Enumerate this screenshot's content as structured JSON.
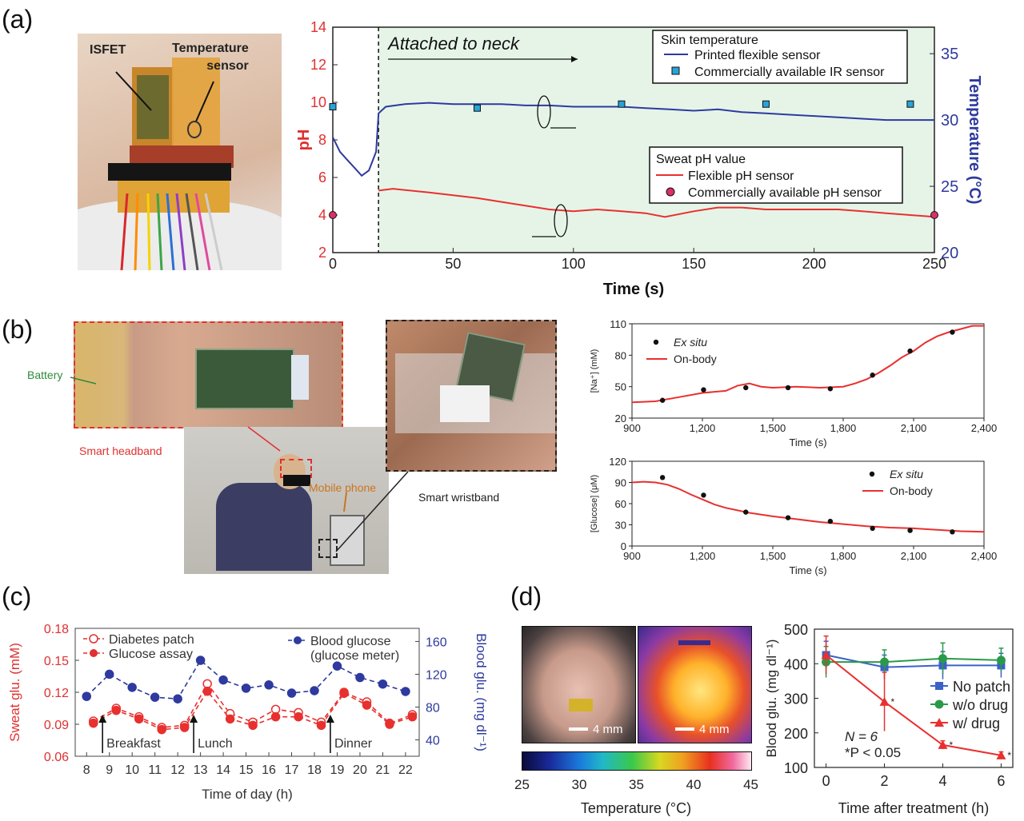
{
  "panels": {
    "a": {
      "label": "(a)",
      "photo_labels": {
        "isfet": "ISFET",
        "temp_sensor": "Temperature\nsensor"
      },
      "chart_data": {
        "type": "line",
        "xlabel": "Time (s)",
        "ylabel_left": "pH",
        "ylabel_right": "Temperature (°C)",
        "xlim": [
          0,
          250
        ],
        "ylim_left": [
          2,
          14
        ],
        "ylim_right": [
          20,
          37
        ],
        "xticks": [
          0,
          50,
          100,
          150,
          200,
          250
        ],
        "yticks_left": [
          2,
          4,
          6,
          8,
          10,
          12,
          14
        ],
        "yticks_right": [
          20,
          25,
          30,
          35
        ],
        "annotation": "Attached to neck",
        "attach_time": 19,
        "legend_temp_title": "Skin temperature",
        "legend_ph_title": "Sweat pH value",
        "series": [
          {
            "name": "Printed flexible sensor",
            "axis": "right",
            "color": "#2e3a9e",
            "x": [
              0,
              3,
              6,
              9,
              12,
              15,
              18,
              19,
              22,
              30,
              40,
              50,
              60,
              70,
              80,
              90,
              100,
              110,
              120,
              130,
              140,
              150,
              160,
              170,
              180,
              190,
              200,
              210,
              220,
              230,
              240,
              250
            ],
            "y": [
              28.7,
              27.6,
              27.0,
              26.4,
              25.8,
              26.2,
              27.6,
              30.5,
              31.0,
              31.2,
              31.3,
              31.2,
              31.2,
              31.2,
              31.1,
              31.1,
              31.0,
              31.0,
              31.0,
              30.9,
              30.8,
              30.7,
              30.8,
              30.6,
              30.5,
              30.4,
              30.3,
              30.2,
              30.1,
              30.0,
              30.0,
              30.0
            ]
          },
          {
            "name": "Commercially available IR sensor",
            "axis": "right",
            "color": "#29a3d8",
            "x": [
              0,
              60,
              120,
              180,
              240
            ],
            "y": [
              31.0,
              30.9,
              31.2,
              31.2,
              31.2
            ]
          },
          {
            "name": "Flexible pH sensor",
            "axis": "left",
            "color": "#e8302f",
            "x": [
              19,
              25,
              40,
              60,
              80,
              90,
              100,
              110,
              120,
              130,
              138,
              150,
              160,
              170,
              180,
              190,
              200,
              210,
              220,
              230,
              240,
              250
            ],
            "y": [
              5.3,
              5.4,
              5.2,
              4.9,
              4.5,
              4.3,
              4.2,
              4.3,
              4.2,
              4.1,
              3.9,
              4.2,
              4.4,
              4.4,
              4.3,
              4.3,
              4.3,
              4.3,
              4.2,
              4.1,
              4.0,
              3.9
            ]
          },
          {
            "name": "Commercially available pH sensor",
            "axis": "left",
            "color": "#d9306a",
            "x": [
              0,
              250
            ],
            "y": [
              4.0,
              4.0
            ]
          }
        ]
      }
    },
    "b": {
      "label": "(b)",
      "photo_labels": {
        "battery": "Battery",
        "headband": "Smart headband",
        "phone": "Mobile phone",
        "wristband": "Smart wristband"
      },
      "chart_data": [
        {
          "type": "line",
          "xlabel": "Time (s)",
          "ylabel": "[Na⁺] (mM)",
          "xlim": [
            900,
            2400
          ],
          "ylim": [
            20,
            110
          ],
          "xticks": [
            900,
            1200,
            1500,
            1800,
            2100,
            2400
          ],
          "xtick_labels": [
            "900",
            "1,200",
            "1,500",
            "1,800",
            "2,100",
            "2,400"
          ],
          "yticks": [
            20,
            50,
            80,
            110
          ],
          "series": [
            {
              "name": "Ex situ",
              "kind": "scatter",
              "color": "#111111",
              "x": [
                1030,
                1205,
                1385,
                1565,
                1745,
                1925,
                2085,
                2265
              ],
              "y": [
                37,
                47,
                49,
                49,
                48,
                61,
                84,
                102
              ]
            },
            {
              "name": "On-body",
              "kind": "line",
              "color": "#e8302f",
              "x": [
                900,
                1000,
                1100,
                1200,
                1300,
                1350,
                1400,
                1450,
                1500,
                1600,
                1700,
                1800,
                1850,
                1900,
                1950,
                2000,
                2050,
                2100,
                2150,
                2200,
                2250,
                2300,
                2350,
                2400
              ],
              "y": [
                35,
                36,
                40,
                44,
                46,
                51,
                53,
                50,
                49,
                50,
                49,
                50,
                53,
                57,
                63,
                70,
                78,
                84,
                92,
                98,
                102,
                105,
                108,
                108
              ]
            }
          ]
        },
        {
          "type": "line",
          "xlabel": "Time (s)",
          "ylabel": "[Glucose] (μM)",
          "xlim": [
            900,
            2400
          ],
          "ylim": [
            0,
            120
          ],
          "xticks": [
            900,
            1200,
            1500,
            1800,
            2100,
            2400
          ],
          "xtick_labels": [
            "900",
            "1,200",
            "1,500",
            "1,800",
            "2,100",
            "2,400"
          ],
          "yticks": [
            0,
            30,
            60,
            90,
            120
          ],
          "series": [
            {
              "name": "Ex situ",
              "kind": "scatter",
              "color": "#111111",
              "x": [
                1030,
                1205,
                1385,
                1565,
                1745,
                1925,
                2085,
                2265
              ],
              "y": [
                97,
                72,
                48,
                40,
                35,
                25,
                22,
                20
              ]
            },
            {
              "name": "On-body",
              "kind": "line",
              "color": "#e8302f",
              "x": [
                900,
                950,
                1000,
                1050,
                1100,
                1150,
                1200,
                1250,
                1300,
                1400,
                1500,
                1600,
                1700,
                1800,
                1900,
                2000,
                2100,
                2200,
                2300,
                2400
              ],
              "y": [
                90,
                91,
                90,
                87,
                81,
                73,
                66,
                59,
                54,
                47,
                42,
                38,
                34,
                31,
                28,
                26,
                25,
                23,
                21,
                20
              ]
            }
          ]
        }
      ]
    },
    "c": {
      "label": "(c)",
      "chart_data": {
        "type": "line",
        "xlabel": "Time of day (h)",
        "ylabel_left": "Sweat glu. (mM)",
        "ylabel_right": "Blood glu. (mg dl⁻¹)",
        "xlim": [
          7.5,
          22.6
        ],
        "ylim_left": [
          0.06,
          0.18
        ],
        "ylim_right": [
          20,
          176
        ],
        "xticks": [
          8,
          9,
          10,
          11,
          12,
          13,
          14,
          15,
          16,
          17,
          18,
          19,
          20,
          21,
          22
        ],
        "yticks_left": [
          0.06,
          0.09,
          0.12,
          0.15,
          0.18
        ],
        "ytick_labels_left": [
          "0.06",
          "0.09",
          "0.12",
          "0.15",
          "0.18"
        ],
        "yticks_right": [
          40,
          80,
          120,
          160
        ],
        "meals": [
          {
            "label": "Breakfast",
            "x": 8.7
          },
          {
            "label": "Lunch",
            "x": 12.7
          },
          {
            "label": "Dinner",
            "x": 18.7
          }
        ],
        "series": [
          {
            "name": "Diabetes patch",
            "axis": "left",
            "color": "#e8302f",
            "marker": "open",
            "x": [
              8.3,
              9.3,
              10.3,
              11.3,
              12.3,
              13.3,
              14.3,
              15.3,
              16.3,
              17.3,
              18.3,
              19.3,
              20.3,
              21.3,
              22.3
            ],
            "y": [
              0.093,
              0.105,
              0.097,
              0.087,
              0.089,
              0.128,
              0.1,
              0.092,
              0.104,
              0.101,
              0.092,
              0.12,
              0.111,
              0.091,
              0.099
            ]
          },
          {
            "name": "Glucose assay",
            "axis": "left",
            "color": "#e8302f",
            "marker": "filled",
            "x": [
              8.3,
              9.3,
              10.3,
              11.3,
              12.3,
              13.3,
              14.3,
              15.3,
              16.3,
              17.3,
              18.3,
              19.3,
              20.3,
              21.3,
              22.3
            ],
            "y": [
              0.091,
              0.103,
              0.095,
              0.085,
              0.087,
              0.121,
              0.095,
              0.089,
              0.097,
              0.097,
              0.089,
              0.119,
              0.108,
              0.09,
              0.097
            ]
          },
          {
            "name": "Blood glucose\n(glucose meter)",
            "axis": "right",
            "color": "#2e3a9e",
            "marker": "filled",
            "x": [
              8,
              9,
              10,
              11,
              12,
              13,
              14,
              15,
              16,
              17,
              18,
              19,
              20,
              21,
              22
            ],
            "y": [
              93,
              120,
              104,
              92,
              90,
              137,
              113,
              103,
              107,
              97,
              100,
              130,
              116,
              108,
              99
            ]
          }
        ]
      }
    },
    "d": {
      "label": "(d)",
      "photo_labels": {
        "scale1": "4 mm",
        "scale2": "4 mm"
      },
      "colorbar": {
        "ticks": [
          "25",
          "30",
          "35",
          "40",
          "45"
        ],
        "label": "Temperature (°C)"
      },
      "chart_data": {
        "type": "line",
        "xlabel": "Time after treatment (h)",
        "ylabel": "Blood glu. (mg dl⁻¹)",
        "xlim": [
          -0.4,
          6.4
        ],
        "ylim": [
          100,
          500
        ],
        "xticks": [
          0,
          2,
          4,
          6
        ],
        "yticks": [
          100,
          200,
          300,
          400,
          500
        ],
        "annotation_n": "N = 6",
        "annotation_p": "*P < 0.05",
        "series": [
          {
            "name": "No patch",
            "color": "#3a62c8",
            "marker": "square",
            "x": [
              0,
              2,
              4,
              6
            ],
            "y": [
              425,
              390,
              395,
              395
            ],
            "err": [
              40,
              35,
              40,
              35
            ]
          },
          {
            "name": "w/o drug",
            "color": "#2a9a4a",
            "marker": "circle",
            "x": [
              0,
              2,
              4,
              6
            ],
            "y": [
              405,
              405,
              415,
              410
            ],
            "err": [
              45,
              35,
              45,
              35
            ]
          },
          {
            "name": "w/ drug",
            "color": "#e8302f",
            "marker": "triangle",
            "x": [
              0,
              2,
              4,
              6
            ],
            "y": [
              425,
              290,
              165,
              135
            ],
            "err": [
              55,
              85,
              12,
              10
            ],
            "sig": [
              false,
              true,
              true,
              true
            ]
          }
        ]
      }
    }
  }
}
